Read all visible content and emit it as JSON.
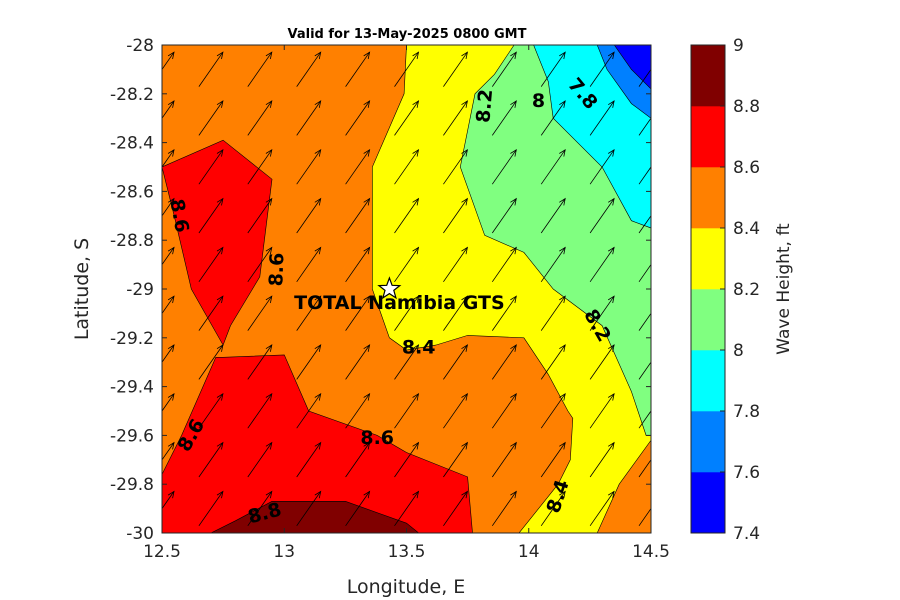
{
  "chart_data": {
    "type": "contour",
    "title": "Valid for 13-May-2025 0800 GMT",
    "xlabel": "Longitude, E",
    "ylabel": "Latitude, S",
    "xlim": [
      12.5,
      14.5
    ],
    "ylim": [
      -30,
      -28
    ],
    "xticks": [
      12.5,
      13,
      13.5,
      14,
      14.5
    ],
    "xtick_labels": [
      "12.5",
      "13",
      "13.5",
      "14",
      "14.5"
    ],
    "yticks": [
      -28,
      -28.2,
      -28.4,
      -28.6,
      -28.8,
      -29,
      -29.2,
      -29.4,
      -29.6,
      -29.8,
      -30
    ],
    "ytick_labels": [
      "-28",
      "-28.2",
      "-28.4",
      "-28.6",
      "-28.8",
      "-29",
      "-29.2",
      "-29.4",
      "-29.6",
      "-29.8",
      "-30"
    ],
    "colorbar": {
      "label": "Wave Height, ft",
      "levels": [
        7.4,
        7.6,
        7.8,
        8,
        8.2,
        8.4,
        8.6,
        8.8,
        9
      ],
      "tick_labels": [
        "7.4",
        "7.6",
        "7.8",
        "8",
        "8.2",
        "8.4",
        "8.6",
        "8.8",
        "9"
      ],
      "colors": [
        "#0000ff",
        "#0080ff",
        "#00ffff",
        "#80ff80",
        "#ffff00",
        "#ff8000",
        "#ff0000",
        "#800000"
      ]
    },
    "regions": [
      {
        "level": [
          8.4,
          8.6
        ],
        "polygon": [
          [
            12.5,
            -28
          ],
          [
            14.5,
            -28
          ],
          [
            14.5,
            -30
          ],
          [
            12.5,
            -30
          ]
        ]
      },
      {
        "level": [
          8.2,
          8.4
        ],
        "polygon": [
          [
            13.98,
            -28
          ],
          [
            14.5,
            -28
          ],
          [
            14.5,
            -29.6
          ],
          [
            14.48,
            -29.62
          ],
          [
            14.37,
            -29.8
          ],
          [
            14.28,
            -30
          ],
          [
            13.5,
            -30
          ],
          [
            13.52,
            -30
          ],
          [
            13.96,
            -30
          ],
          [
            14.17,
            -29.7
          ],
          [
            14.18,
            -29.53
          ],
          [
            14.16,
            -29.5
          ],
          [
            14.08,
            -29.35
          ],
          [
            13.98,
            -29.2
          ],
          [
            13.75,
            -29.19
          ],
          [
            13.62,
            -29.23
          ],
          [
            13.5,
            -29.25
          ],
          [
            13.43,
            -29.2
          ],
          [
            13.36,
            -29
          ],
          [
            13.38,
            -28.5
          ],
          [
            13.49,
            -28.2
          ],
          [
            13.5,
            -28
          ]
        ]
      },
      {
        "level": [
          8.2,
          8.4
        ],
        "polygon": [
          [
            13.5,
            -28
          ],
          [
            14.5,
            -28
          ],
          [
            14.5,
            -29.62
          ],
          [
            14.37,
            -29.8
          ],
          [
            14.28,
            -30
          ],
          [
            13.96,
            -30
          ],
          [
            14.12,
            -29.8
          ],
          [
            14.17,
            -29.7
          ],
          [
            14.18,
            -29.53
          ],
          [
            14.16,
            -29.5
          ],
          [
            14.08,
            -29.35
          ],
          [
            13.98,
            -29.2
          ],
          [
            13.75,
            -29.19
          ],
          [
            13.62,
            -29.23
          ],
          [
            13.5,
            -29.25
          ],
          [
            13.43,
            -29.2
          ],
          [
            13.36,
            -29
          ],
          [
            13.36,
            -28.5
          ],
          [
            13.49,
            -28.2
          ],
          [
            13.5,
            -28
          ]
        ]
      },
      {
        "level": [
          8,
          8.2
        ],
        "polygon": [
          [
            13.98,
            -28
          ],
          [
            14.5,
            -28
          ],
          [
            14.5,
            -29.6
          ],
          [
            14.48,
            -29.6
          ],
          [
            14.42,
            -29.42
          ],
          [
            14.3,
            -29.15
          ],
          [
            14.1,
            -29
          ],
          [
            13.98,
            -28.85
          ],
          [
            13.82,
            -28.78
          ],
          [
            13.72,
            -28.5
          ],
          [
            13.78,
            -28.2
          ],
          [
            13.86,
            -28.12
          ],
          [
            13.94,
            -28
          ]
        ]
      },
      {
        "level": [
          7.8,
          8
        ],
        "polygon": [
          [
            14.02,
            -28
          ],
          [
            14.5,
            -28
          ],
          [
            14.5,
            -28.75
          ],
          [
            14.42,
            -28.72
          ],
          [
            14.3,
            -28.5
          ],
          [
            14.1,
            -28.3
          ],
          [
            14.08,
            -28.15
          ],
          [
            14.02,
            -28
          ]
        ]
      },
      {
        "level": [
          7.6,
          7.8
        ],
        "polygon": [
          [
            14.28,
            -28
          ],
          [
            14.5,
            -28
          ],
          [
            14.5,
            -28.3
          ],
          [
            14.42,
            -28.24
          ],
          [
            14.32,
            -28.1
          ],
          [
            14.28,
            -28
          ]
        ]
      },
      {
        "level": [
          7.4,
          7.6
        ],
        "polygon": [
          [
            14.35,
            -28
          ],
          [
            14.5,
            -28
          ],
          [
            14.5,
            -28.18
          ],
          [
            14.42,
            -28.1
          ],
          [
            14.35,
            -28
          ]
        ]
      },
      {
        "level": [
          8.6,
          8.8
        ],
        "polygon": [
          [
            12.5,
            -28.5
          ],
          [
            12.75,
            -28.39
          ],
          [
            12.95,
            -28.55
          ],
          [
            12.9,
            -28.95
          ],
          [
            12.78,
            -29.15
          ],
          [
            12.75,
            -29.23
          ],
          [
            12.62,
            -29
          ],
          [
            12.55,
            -28.7
          ],
          [
            12.5,
            -28.5
          ]
        ]
      },
      {
        "level": [
          8.6,
          8.8
        ],
        "polygon": [
          [
            12.5,
            -29.76
          ],
          [
            12.58,
            -29.6
          ],
          [
            12.72,
            -29.28
          ],
          [
            12.75,
            -29.28
          ],
          [
            13.0,
            -29.27
          ],
          [
            13.1,
            -29.5
          ],
          [
            13.38,
            -29.6
          ],
          [
            13.5,
            -29.67
          ],
          [
            13.75,
            -29.77
          ],
          [
            13.77,
            -30
          ],
          [
            12.5,
            -30
          ]
        ]
      },
      {
        "level": [
          8.8,
          9
        ],
        "polygon": [
          [
            12.7,
            -30
          ],
          [
            12.8,
            -29.95
          ],
          [
            12.95,
            -29.87
          ],
          [
            13.25,
            -29.87
          ],
          [
            13.5,
            -29.96
          ],
          [
            13.55,
            -30
          ]
        ]
      }
    ],
    "contour_labels": [
      {
        "text": "8.2",
        "x": 13.82,
        "y": -28.25,
        "angle": -85
      },
      {
        "text": "8",
        "x": 14.04,
        "y": -28.23,
        "angle": 0
      },
      {
        "text": "7.8",
        "x": 14.22,
        "y": -28.2,
        "angle": 50
      },
      {
        "text": "8.6",
        "x": 12.57,
        "y": -28.7,
        "angle": 80
      },
      {
        "text": "8.6",
        "x": 12.97,
        "y": -28.92,
        "angle": -88
      },
      {
        "text": "8.2",
        "x": 14.28,
        "y": -29.15,
        "angle": 60
      },
      {
        "text": "8.4",
        "x": 13.55,
        "y": -29.24,
        "angle": 0
      },
      {
        "text": "8.6",
        "x": 12.62,
        "y": -29.6,
        "angle": -60
      },
      {
        "text": "8.6",
        "x": 13.38,
        "y": -29.61,
        "angle": 0
      },
      {
        "text": "8.4",
        "x": 14.12,
        "y": -29.85,
        "angle": -72
      },
      {
        "text": "8.8",
        "x": 12.92,
        "y": -29.92,
        "angle": -15
      }
    ],
    "site": {
      "name": "TOTAL Namibia GTS",
      "lon": 13.43,
      "lat": -29.0
    },
    "vector_field": {
      "lon": [
        12.5,
        12.7,
        12.9,
        13.1,
        13.3,
        13.5,
        13.7,
        13.9,
        14.1,
        14.3,
        14.5
      ],
      "lat": [
        -28.1,
        -28.3,
        -28.5,
        -28.7,
        -28.9,
        -29.1,
        -29.3,
        -29.5,
        -29.7,
        -29.9
      ],
      "direction_deg": 35,
      "units": "ft"
    }
  }
}
